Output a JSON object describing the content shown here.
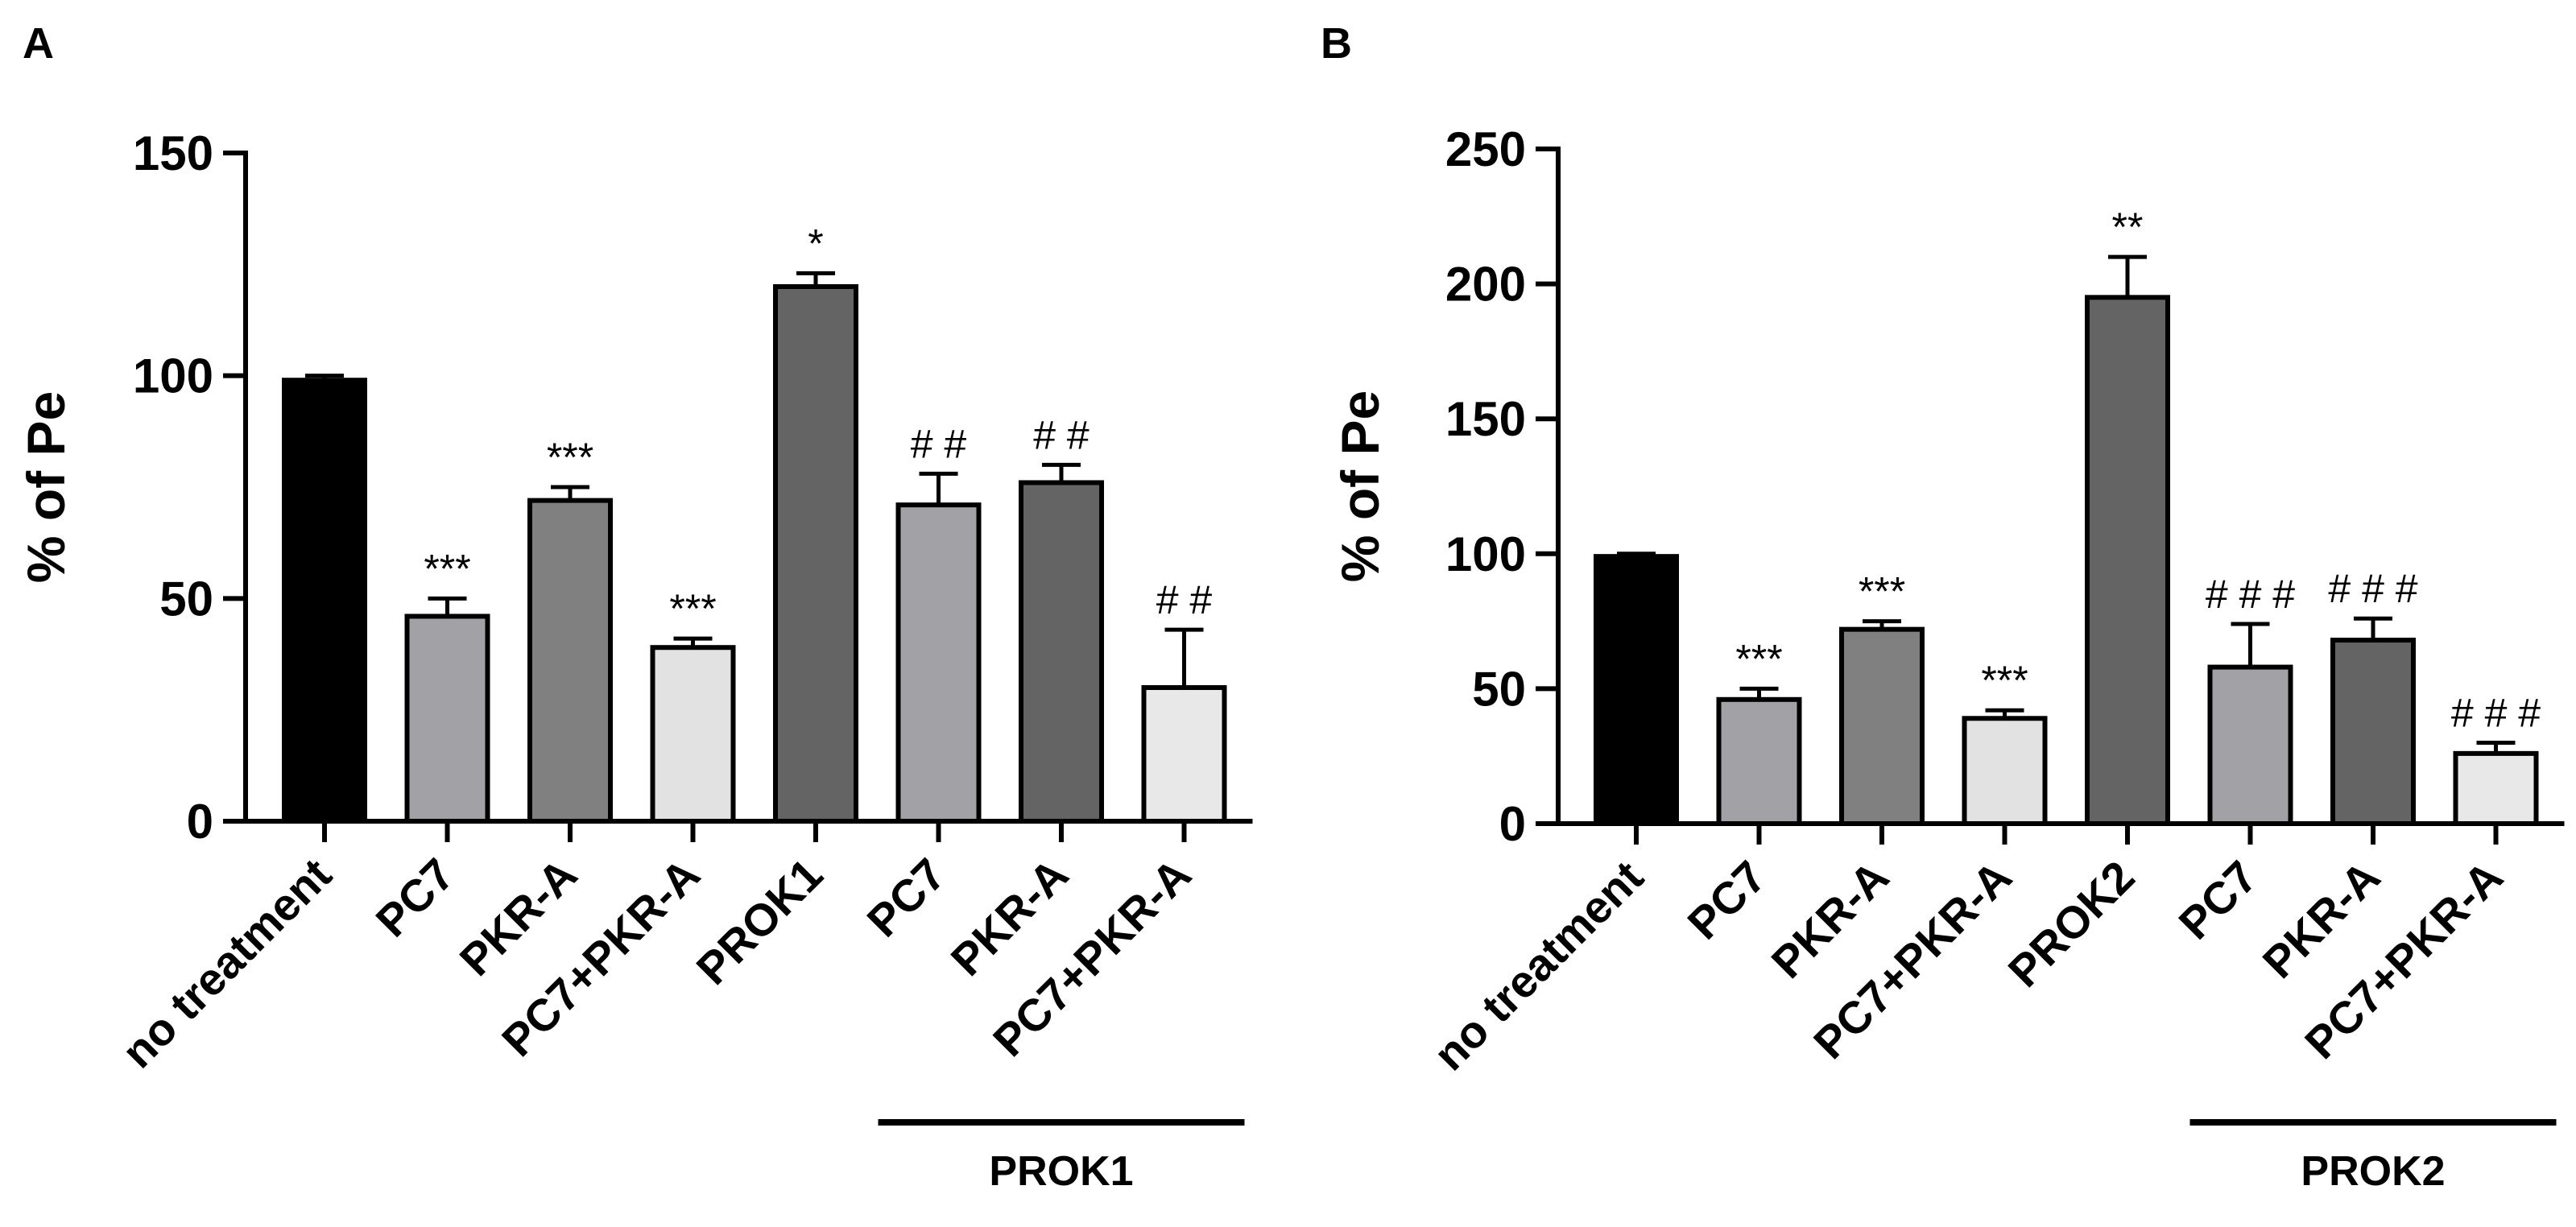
{
  "chart_data": [
    {
      "type": "bar",
      "panel": "A",
      "ylabel": "% of Pe",
      "ylim": [
        0,
        150
      ],
      "yticks": [
        0,
        50,
        100,
        150
      ],
      "categories": [
        "no treatment",
        "PC7",
        "PKR-A",
        "PC7+PKR-A",
        "PROK1",
        "PC7",
        "PKR-A",
        "PC7+PKR-A"
      ],
      "values": [
        99,
        46,
        72,
        39,
        120,
        71,
        76,
        30
      ],
      "errors": [
        1,
        4,
        3,
        2,
        3,
        7,
        4,
        13
      ],
      "significance": [
        "",
        "***",
        "***",
        "***",
        "*",
        "# #",
        "# #",
        "# #"
      ],
      "bar_colors": [
        "#000000",
        "#a2a2a6",
        "#808080",
        "#e2e2e2",
        "#646464",
        "#a2a2a6",
        "#646464",
        "#e8e8e8"
      ],
      "group": {
        "label": "PROK1",
        "start_index": 5,
        "end_index": 7
      }
    },
    {
      "type": "bar",
      "panel": "B",
      "ylabel": "% of Pe",
      "ylim": [
        0,
        250
      ],
      "yticks": [
        0,
        50,
        100,
        150,
        200,
        250
      ],
      "categories": [
        "no treatment",
        "PC7",
        "PKR-A",
        "PC7+PKR-A",
        "PROK2",
        "PC7",
        "PKR-A",
        "PC7+PKR-A"
      ],
      "values": [
        99,
        46,
        72,
        39,
        195,
        58,
        68,
        26
      ],
      "errors": [
        1,
        4,
        3,
        3,
        15,
        16,
        8,
        4
      ],
      "significance": [
        "",
        "***",
        "***",
        "***",
        "**",
        "# # #",
        "# # #",
        "# # #"
      ],
      "bar_colors": [
        "#000000",
        "#a2a2a6",
        "#808080",
        "#e2e2e2",
        "#646464",
        "#a2a2a6",
        "#646464",
        "#e8e8e8"
      ],
      "group": {
        "label": "PROK2",
        "start_index": 5,
        "end_index": 7
      }
    }
  ]
}
